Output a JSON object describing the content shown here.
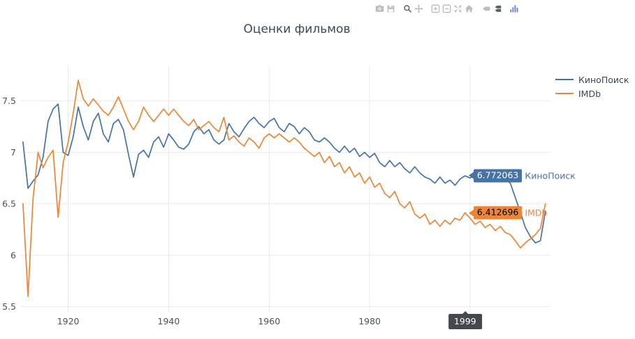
{
  "chart_data": {
    "type": "line",
    "title": "Оценки фильмов",
    "xlabel": "",
    "ylabel": "",
    "grid": true,
    "legend_position": "top-right",
    "x_start": 1911,
    "x_end": 2015,
    "xlim": [
      1910.6,
      2016
    ],
    "ylim": [
      5.45,
      7.85
    ],
    "xticks": [
      1920,
      1940,
      1960,
      1980,
      2000
    ],
    "xtick_labels": [
      "1920",
      "1940",
      "1960",
      "1980",
      "2000"
    ],
    "yticks": [
      5.5,
      6,
      6.5,
      7,
      7.5
    ],
    "ytick_labels": [
      "5.5",
      "6",
      "6.5",
      "7",
      "7.5"
    ],
    "series": [
      {
        "id": "kinopoisk",
        "name": "КиноПоиск",
        "color": "#4572a7",
        "values": [
          7.1,
          6.65,
          6.72,
          6.78,
          6.95,
          7.3,
          7.42,
          7.47,
          7.0,
          6.97,
          7.15,
          7.44,
          7.25,
          7.12,
          7.3,
          7.38,
          7.18,
          7.1,
          7.28,
          7.32,
          7.22,
          6.98,
          6.76,
          6.98,
          7.02,
          6.95,
          7.1,
          7.15,
          7.05,
          7.18,
          7.12,
          7.05,
          7.03,
          7.08,
          7.2,
          7.25,
          7.18,
          7.22,
          7.12,
          7.08,
          7.12,
          7.28,
          7.2,
          7.15,
          7.23,
          7.3,
          7.34,
          7.28,
          7.24,
          7.3,
          7.33,
          7.24,
          7.2,
          7.28,
          7.25,
          7.18,
          7.24,
          7.2,
          7.12,
          7.1,
          7.14,
          7.1,
          7.04,
          7.0,
          7.06,
          7.0,
          7.04,
          6.96,
          7.0,
          6.95,
          6.99,
          6.9,
          6.86,
          6.92,
          6.86,
          6.9,
          6.84,
          6.8,
          6.86,
          6.8,
          6.76,
          6.74,
          6.7,
          6.76,
          6.7,
          6.73,
          6.68,
          6.74,
          6.772063,
          6.75,
          6.78,
          6.73,
          6.76,
          6.78,
          6.73,
          6.76,
          6.74,
          6.7,
          6.56,
          6.42,
          6.27,
          6.18,
          6.12,
          6.14,
          6.43
        ]
      },
      {
        "id": "imdb",
        "name": "IMDb",
        "color": "#ed8536",
        "values": [
          6.5,
          5.6,
          6.55,
          7.0,
          6.85,
          6.95,
          7.02,
          6.37,
          6.9,
          7.1,
          7.38,
          7.7,
          7.52,
          7.45,
          7.52,
          7.46,
          7.4,
          7.36,
          7.44,
          7.54,
          7.42,
          7.3,
          7.22,
          7.3,
          7.44,
          7.36,
          7.3,
          7.36,
          7.42,
          7.36,
          7.42,
          7.36,
          7.3,
          7.26,
          7.32,
          7.22,
          7.26,
          7.3,
          7.24,
          7.2,
          7.34,
          7.12,
          7.16,
          7.1,
          7.06,
          7.14,
          7.1,
          7.04,
          7.14,
          7.18,
          7.14,
          7.18,
          7.14,
          7.1,
          7.14,
          7.1,
          7.04,
          7.0,
          6.96,
          7.0,
          6.9,
          6.96,
          6.86,
          6.9,
          6.8,
          6.86,
          6.76,
          6.8,
          6.7,
          6.76,
          6.66,
          6.7,
          6.6,
          6.56,
          6.62,
          6.5,
          6.46,
          6.52,
          6.4,
          6.36,
          6.4,
          6.3,
          6.34,
          6.28,
          6.34,
          6.3,
          6.36,
          6.34,
          6.412696,
          6.36,
          6.3,
          6.33,
          6.27,
          6.3,
          6.24,
          6.28,
          6.22,
          6.2,
          6.14,
          6.07,
          6.12,
          6.16,
          6.2,
          6.26,
          6.5
        ]
      }
    ]
  },
  "hover": {
    "x_year": 1999,
    "x_label": "1999",
    "points": [
      {
        "series_index": 0,
        "value": 6.772063,
        "value_label": "6.772063",
        "name": "КиноПоиск",
        "text_color": "#ffffff"
      },
      {
        "series_index": 1,
        "value": 6.412696,
        "value_label": "6.412696",
        "name": "IMDb",
        "text_color": "#000000"
      }
    ]
  },
  "modebar": {
    "groups": [
      [
        "camera",
        "save"
      ],
      [
        "zoom",
        "pan"
      ],
      [
        "zoom-in",
        "zoom-out",
        "autoscale",
        "reset-axes"
      ],
      [
        "hover-closest",
        "hover-compare"
      ],
      [
        "plotly-logo"
      ]
    ],
    "active": [
      "zoom",
      "hover-compare"
    ],
    "colors": {
      "icon": "#b8bcc4",
      "active": "#5c6370",
      "logo": "#7086c0"
    }
  }
}
